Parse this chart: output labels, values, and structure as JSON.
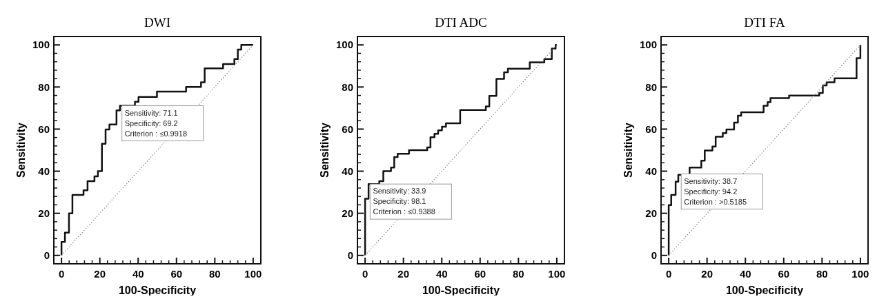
{
  "chart_data": [
    {
      "type": "step",
      "title": "DWI",
      "xlabel": "100-Specificity",
      "ylabel": "Sensitivity",
      "xlim": [
        -4,
        104
      ],
      "ylim": [
        -4,
        104
      ],
      "xticks": [
        0,
        20,
        40,
        60,
        80,
        100
      ],
      "yticks": [
        0,
        20,
        40,
        60,
        80,
        100
      ],
      "grid": false,
      "marker": "none",
      "annotations": [
        {
          "text": "Sensitivity: 71.1\nSpecificity: 69.2\nCriterion : ≤0.9918",
          "x": 30.8,
          "y": 71.1
        }
      ],
      "series": [
        {
          "color": "#111111",
          "line_style": "solid",
          "x": [
            0,
            0,
            1.8,
            3.9,
            5.7,
            11.5,
            13.6,
            17.2,
            19,
            21.1,
            23,
            25,
            28.7,
            30.5,
            38.3,
            40.2,
            49.8,
            65,
            72.8,
            74.7,
            84.3,
            90.2,
            92,
            93.8,
            100
          ],
          "values": [
            0,
            6.4,
            10.8,
            20,
            28.7,
            30.9,
            35.3,
            37.6,
            40,
            53,
            59.8,
            62.2,
            68.9,
            71.1,
            73,
            75.3,
            77.8,
            80,
            82.2,
            88.9,
            90.9,
            93.3,
            97.8,
            100,
            100
          ]
        },
        {
          "type": "line",
          "color": "#888888",
          "line_style": "dotted",
          "x": [
            0,
            100
          ],
          "values": [
            0,
            100
          ]
        }
      ]
    },
    {
      "type": "step",
      "title": "DTI ADC",
      "xlabel": "100-Specificity",
      "ylabel": "Sensitivity",
      "xlim": [
        -4,
        104
      ],
      "ylim": [
        -4,
        104
      ],
      "xticks": [
        0,
        20,
        40,
        60,
        80,
        100
      ],
      "yticks": [
        0,
        20,
        40,
        60,
        80,
        100
      ],
      "grid": false,
      "marker": "none",
      "annotations": [
        {
          "text": "Sensitivity: 33.9\nSpecificity: 98.1\nCriterion : ≤0.9388",
          "x": 1.9,
          "y": 33.9
        }
      ],
      "series": [
        {
          "color": "#111111",
          "line_style": "solid",
          "x": [
            0,
            0,
            1.8,
            7.4,
            9.5,
            13.5,
            15.2,
            17,
            22.9,
            32.4,
            34.1,
            36.2,
            38.1,
            40.1,
            42.2,
            49.6,
            63,
            64.8,
            68.5,
            72.5,
            74.5,
            85.9,
            93.5,
            97.4,
            99.4,
            100
          ],
          "values": [
            0,
            26.9,
            33.9,
            35.3,
            40,
            41.7,
            46.7,
            48.3,
            50,
            51.3,
            56.1,
            57.8,
            59.4,
            61.1,
            62.8,
            69.1,
            70.8,
            75.8,
            83.9,
            87,
            88.7,
            91.7,
            93.3,
            98.3,
            100,
            100
          ]
        },
        {
          "type": "line",
          "color": "#888888",
          "line_style": "dotted",
          "x": [
            0,
            100
          ],
          "values": [
            0,
            100
          ]
        }
      ]
    },
    {
      "type": "step",
      "title": "DTI FA",
      "xlabel": "100-Specificity",
      "ylabel": "Sensitivity",
      "xlim": [
        -4,
        104
      ],
      "ylim": [
        -4,
        104
      ],
      "xticks": [
        0,
        20,
        40,
        60,
        80,
        100
      ],
      "yticks": [
        0,
        20,
        40,
        60,
        80,
        100
      ],
      "grid": false,
      "marker": "none",
      "annotations": [
        {
          "text": "Sensitivity: 38.7\nSpecificity: 94.2\nCriterion : >0.5185",
          "x": 5.8,
          "y": 38.7
        }
      ],
      "series": [
        {
          "color": "#111111",
          "line_style": "solid",
          "x": [
            0,
            0,
            1.3,
            3.6,
            5,
            10.9,
            17,
            18.8,
            22.8,
            24.5,
            28.2,
            30.1,
            34.1,
            36.1,
            37.8,
            49.5,
            51.6,
            53.1,
            62.8,
            78.5,
            80.4,
            82.4,
            86.5,
            98,
            100,
            100
          ],
          "values": [
            0,
            23.9,
            28.7,
            35,
            38.3,
            41.7,
            45,
            49.8,
            51.7,
            56.4,
            58.1,
            59.8,
            63.1,
            66.4,
            68,
            71.1,
            72.8,
            74.7,
            75.9,
            77.2,
            80.8,
            82.2,
            84.1,
            93.7,
            100,
            100
          ]
        },
        {
          "type": "line",
          "color": "#888888",
          "line_style": "dotted",
          "x": [
            0,
            100
          ],
          "values": [
            0,
            100
          ]
        }
      ]
    }
  ]
}
